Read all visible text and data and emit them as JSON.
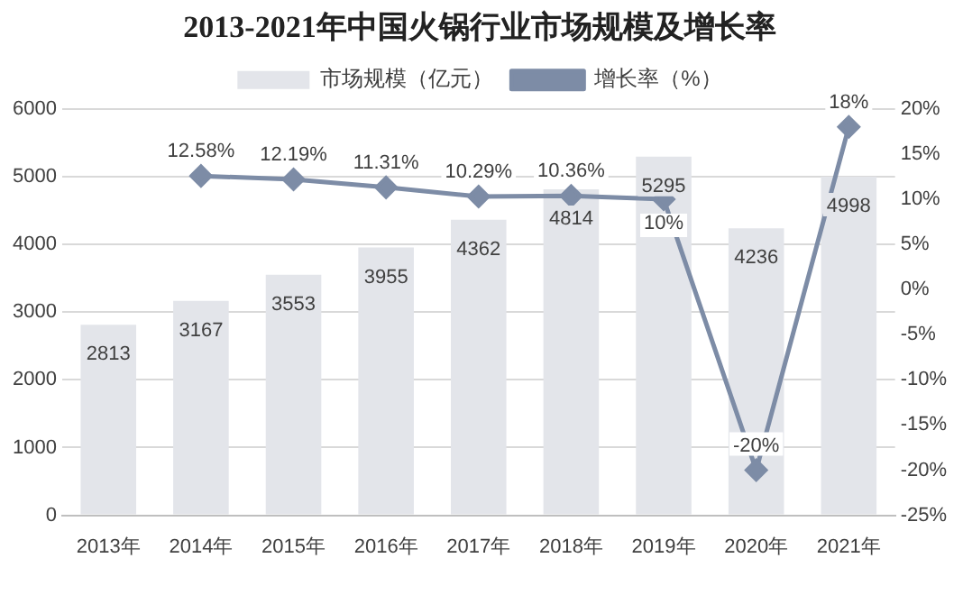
{
  "chart_data": {
    "type": "bar",
    "title": "2013-2021年中国火锅行业市场规模及增长率",
    "categories": [
      "2013年",
      "2014年",
      "2015年",
      "2016年",
      "2017年",
      "2018年",
      "2019年",
      "2020年",
      "2021年"
    ],
    "series": [
      {
        "name": "市场规模（亿元）",
        "color": "#e3e5ea",
        "values": [
          2813,
          3167,
          3553,
          3955,
          4362,
          4814,
          5295,
          4236,
          4998
        ],
        "value_labels": [
          "2813",
          "3167",
          "3553",
          "3955",
          "4362",
          "4814",
          "5295",
          "4236",
          "4998"
        ]
      },
      {
        "name": "增长率（%）",
        "type": "line",
        "axis": "y2",
        "color": "#7d8ca6",
        "marker": "diamond",
        "values": [
          null,
          12.58,
          12.19,
          11.31,
          10.29,
          10.36,
          10,
          -20,
          18
        ],
        "value_labels": [
          null,
          "12.58%",
          "12.19%",
          "11.31%",
          "10.29%",
          "10.36%",
          "10%",
          "-20%",
          "18%"
        ]
      }
    ],
    "ylim": [
      0,
      6000
    ],
    "yticks": [
      0,
      1000,
      2000,
      3000,
      4000,
      5000,
      6000
    ],
    "y2lim": [
      -25,
      20
    ],
    "y2ticks": [
      {
        "value": -25,
        "label": "-25%"
      },
      {
        "value": -20,
        "label": "-20%"
      },
      {
        "value": -15,
        "label": "-15%"
      },
      {
        "value": -10,
        "label": "-10%"
      },
      {
        "value": -5,
        "label": "-5%"
      },
      {
        "value": 0,
        "label": "0%"
      },
      {
        "value": 5,
        "label": "5%"
      },
      {
        "value": 10,
        "label": "10%"
      },
      {
        "value": 15,
        "label": "15%"
      },
      {
        "value": 20,
        "label": "20%"
      }
    ],
    "grid": "y",
    "legend": "top"
  }
}
